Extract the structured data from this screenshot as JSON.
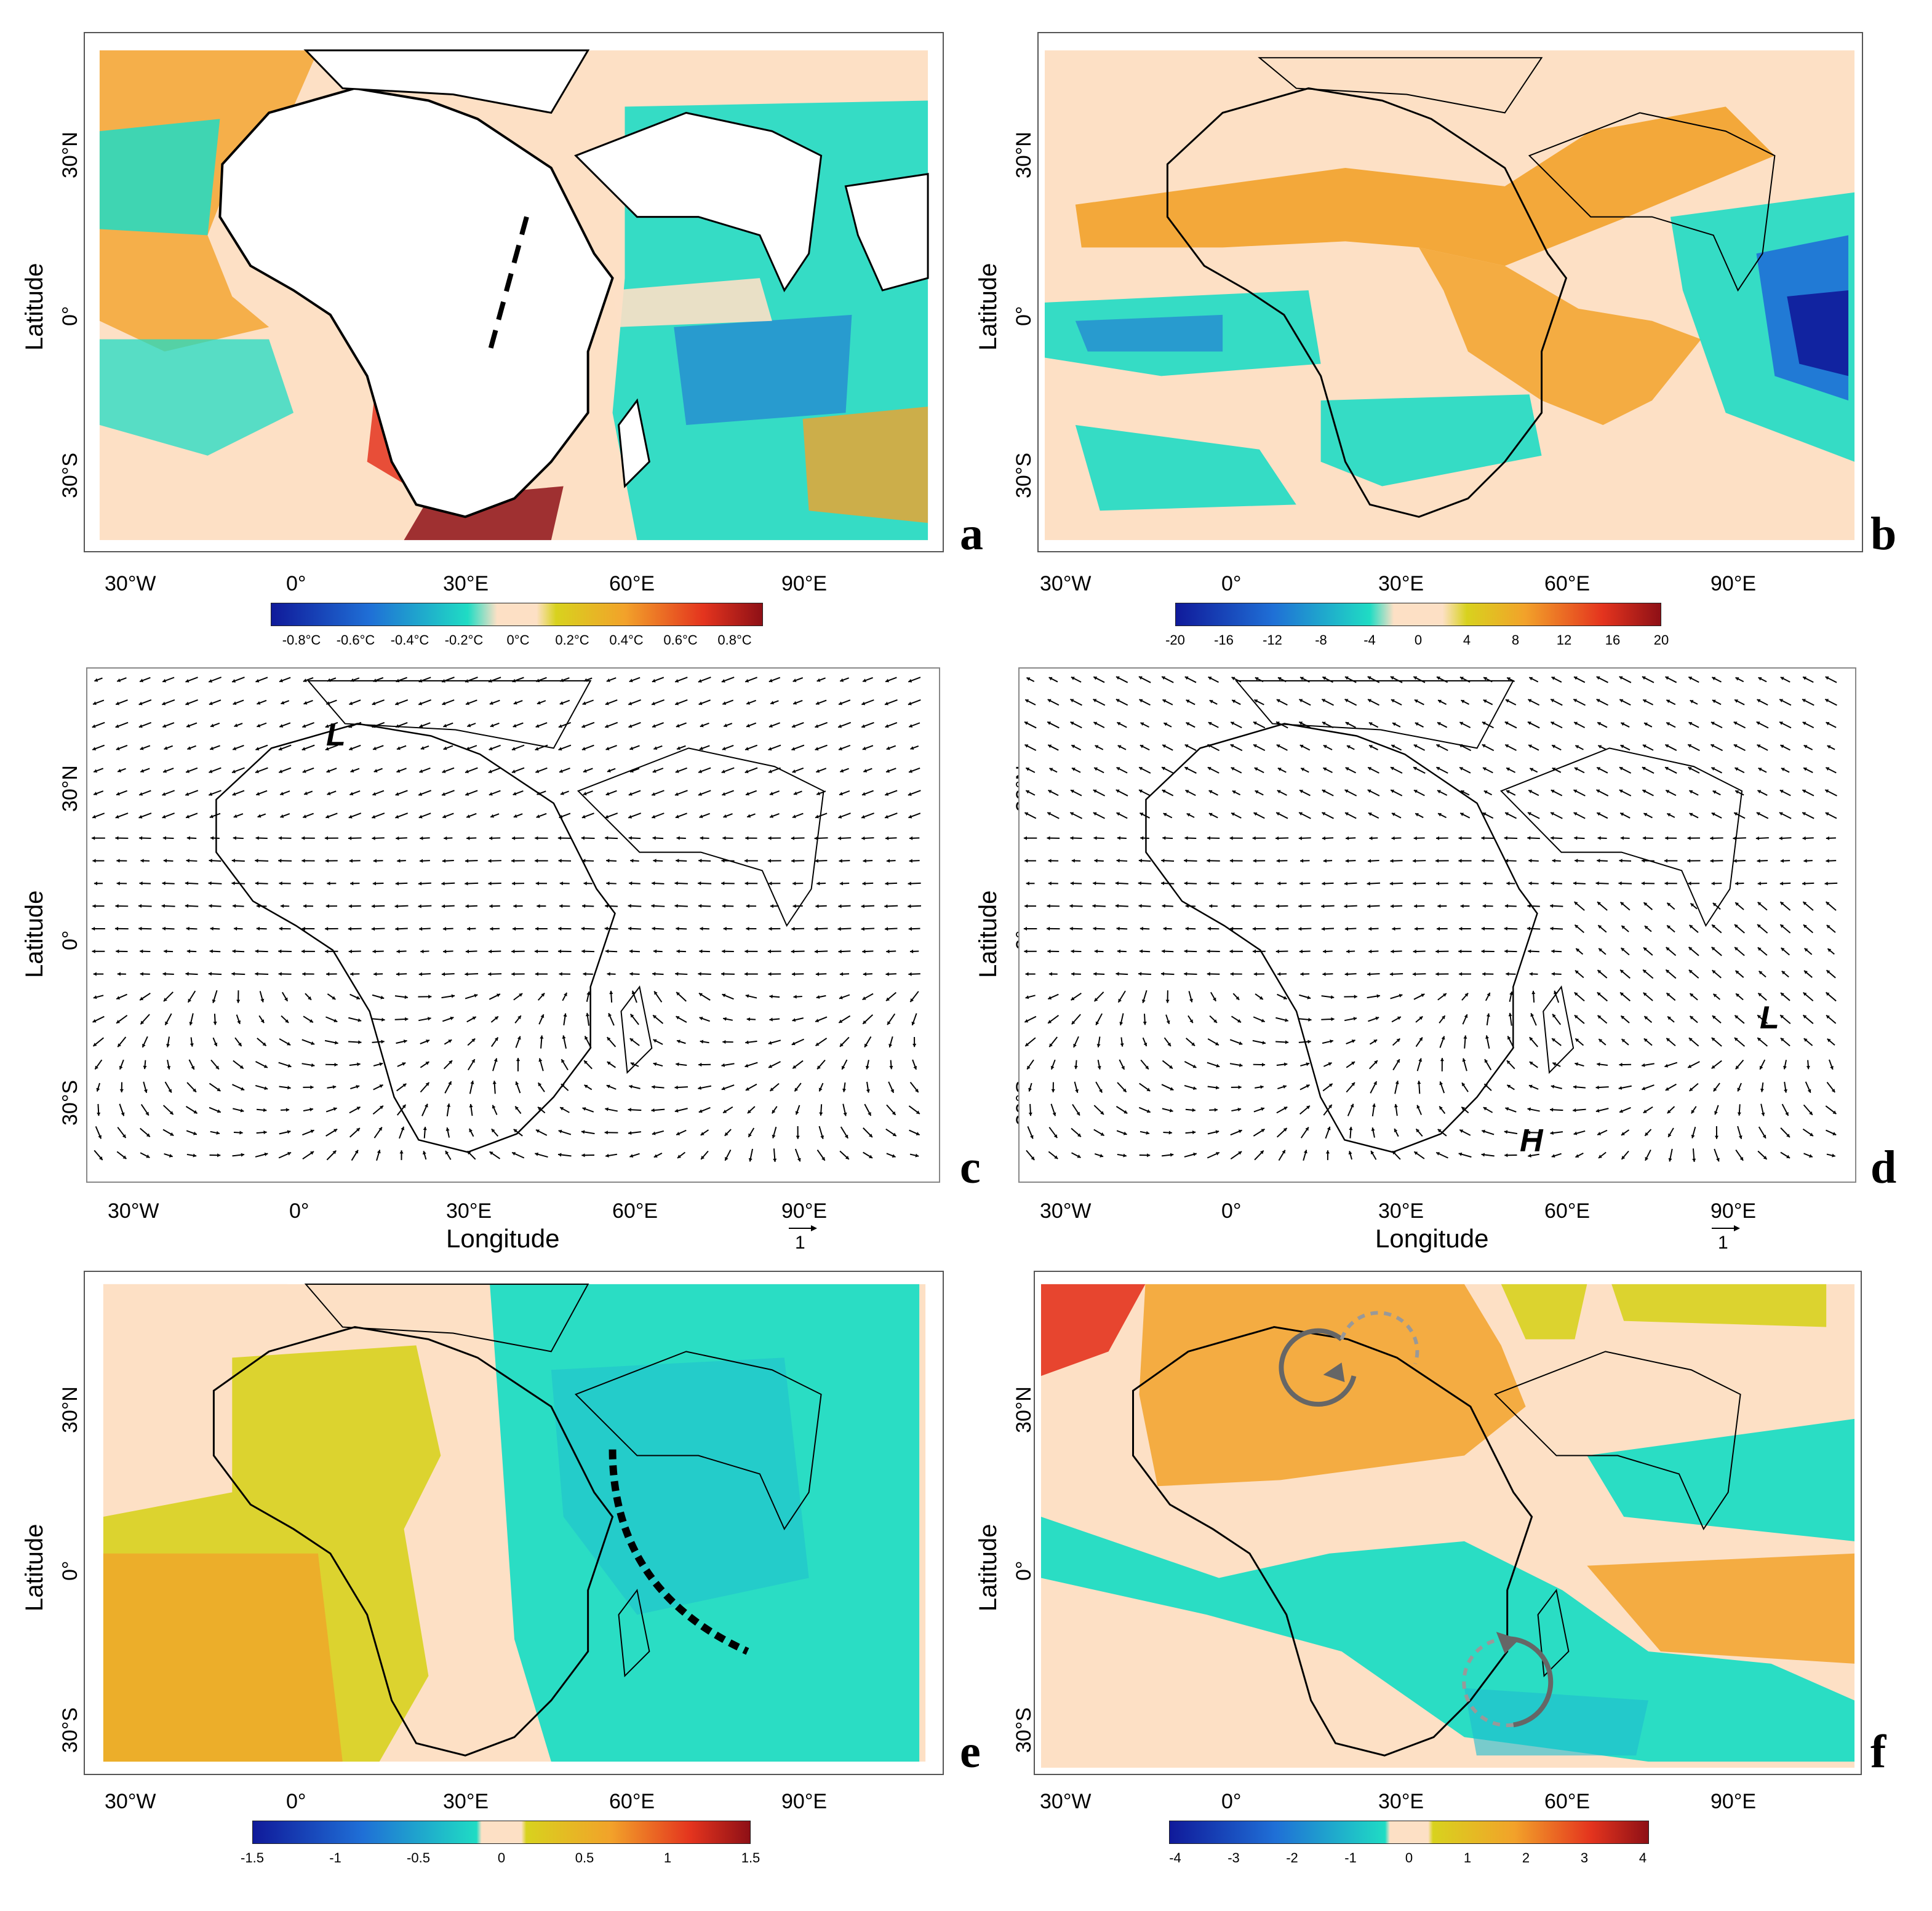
{
  "figure": {
    "axis_label_lat": "Latitude",
    "axis_label_lon": "Longitude",
    "lon_ticks": [
      "30°W",
      "0°",
      "30°E",
      "60°E",
      "90°E"
    ],
    "lat_ticks": [
      "30°N",
      "0°",
      "30°S"
    ],
    "reference_vector_label": "1"
  },
  "panels": {
    "a": {
      "letter": "a",
      "colorbar": {
        "ticks": [
          "-0.8°C",
          "-0.6°C",
          "-0.4°C",
          "-0.2°C",
          "0°C",
          "0.2°C",
          "0.4°C",
          "0.6°C",
          "0.8°C"
        ]
      }
    },
    "b": {
      "letter": "b",
      "colorbar": {
        "ticks": [
          "-20",
          "-16",
          "-12",
          "-8",
          "-4",
          "0",
          "4",
          "8",
          "12",
          "16",
          "20"
        ]
      }
    },
    "c": {
      "letter": "c",
      "marker": "L"
    },
    "d": {
      "letter": "d",
      "marker_l": "L",
      "marker_h": "H"
    },
    "e": {
      "letter": "e",
      "colorbar": {
        "ticks": [
          "-1.5",
          "-1",
          "-0.5",
          "0",
          "0.5",
          "1",
          "1.5"
        ]
      }
    },
    "f": {
      "letter": "f",
      "colorbar": {
        "ticks": [
          "-4",
          "-3",
          "-2",
          "-1",
          "0",
          "1",
          "2",
          "3",
          "4"
        ]
      }
    }
  },
  "colors": {
    "neutral": "#fde0c5",
    "cyan": "#1fdcc4",
    "blue": "#1f6fd6",
    "darkblue": "#101a9a",
    "olive": "#d8d21e",
    "orange": "#f2a22a",
    "red": "#e4341e",
    "darkred": "#8e1016"
  }
}
